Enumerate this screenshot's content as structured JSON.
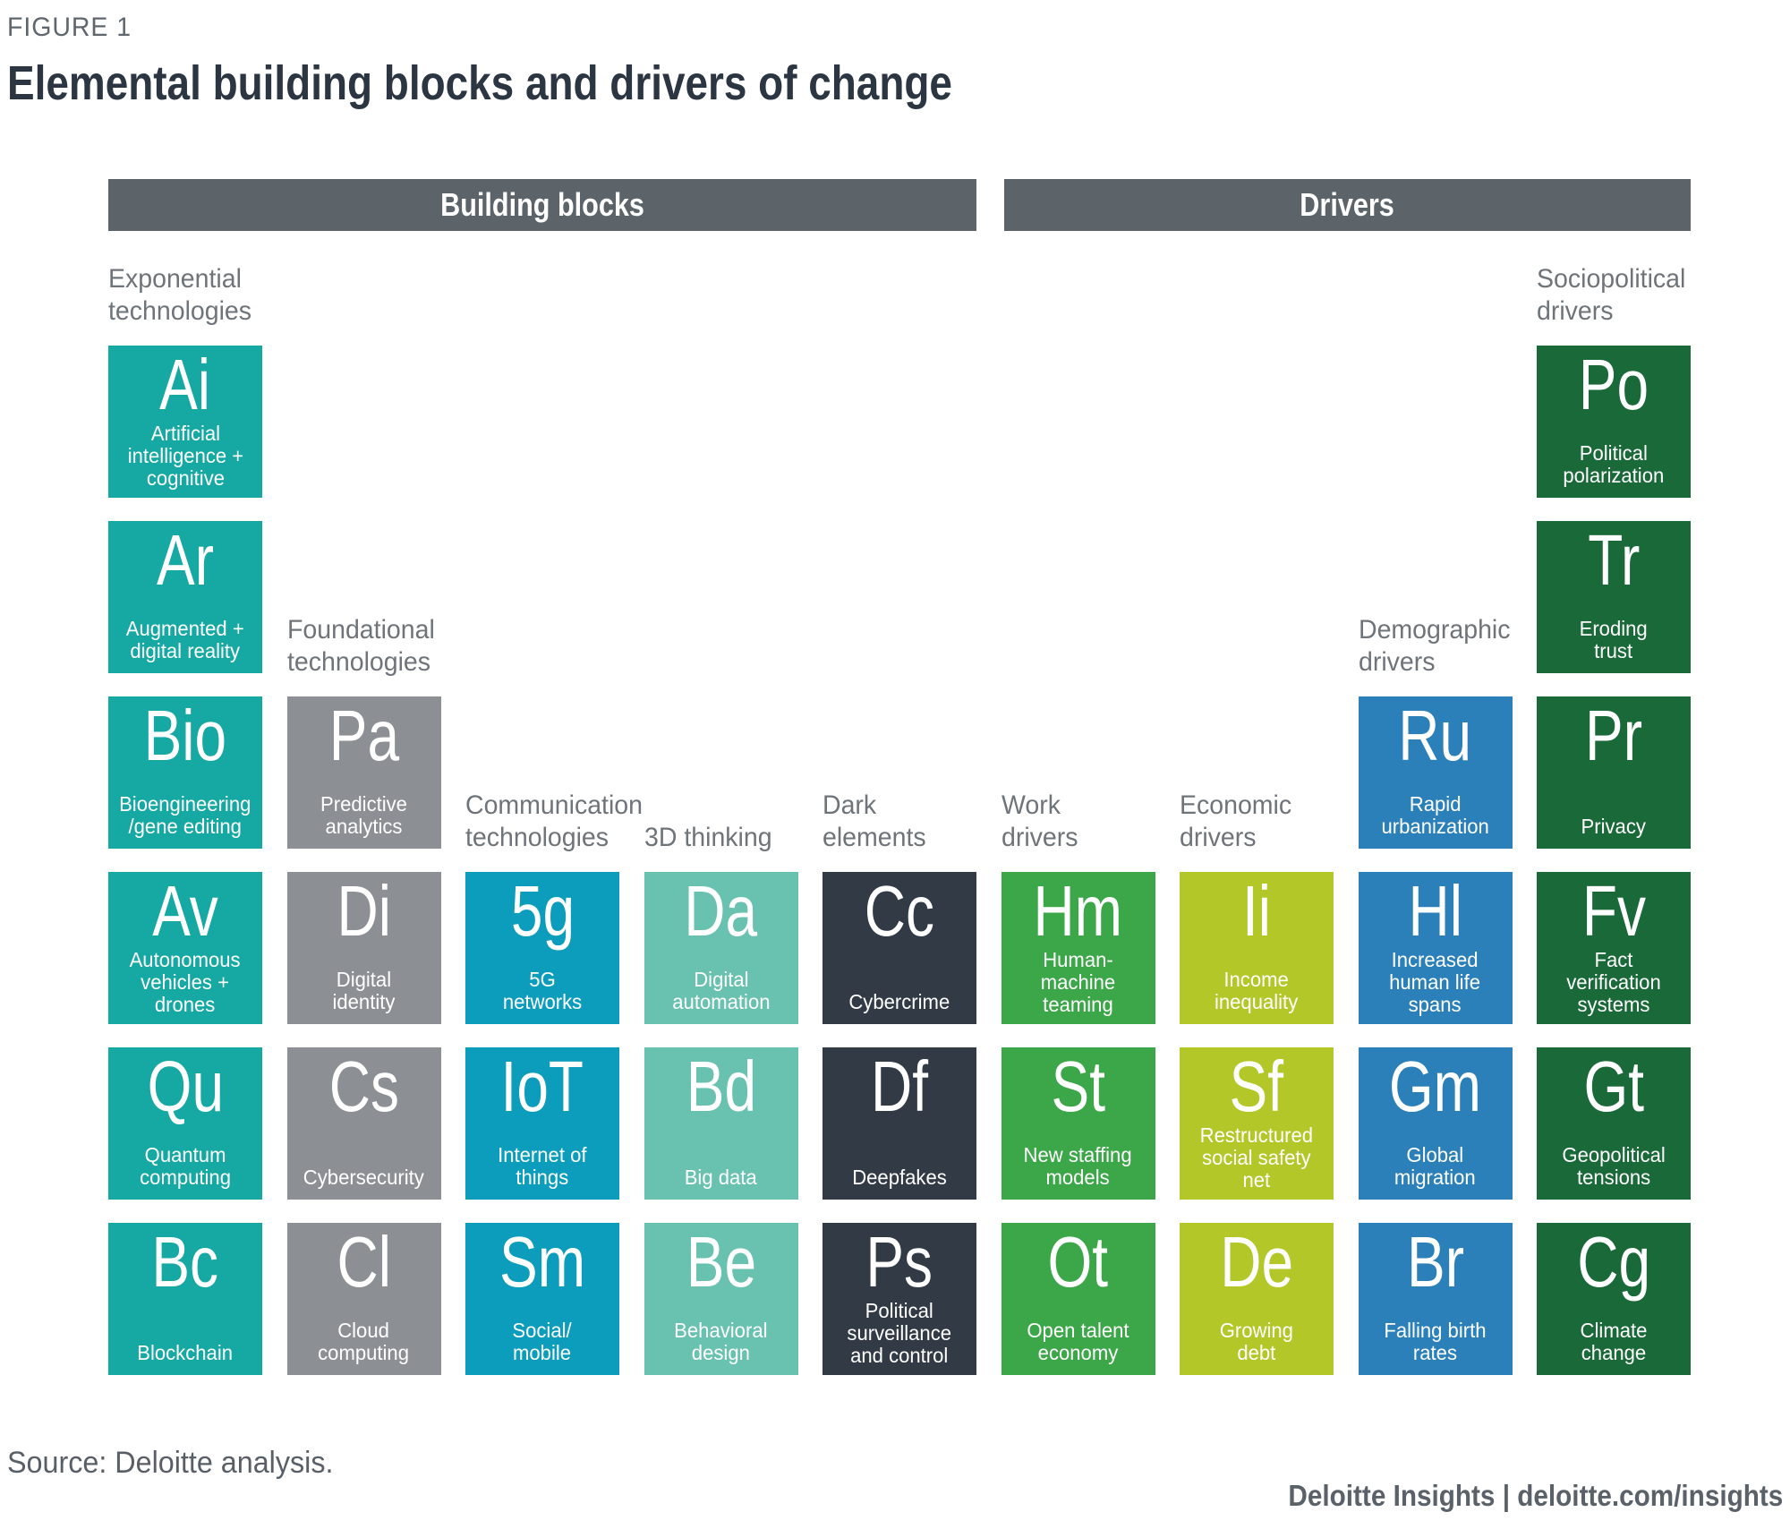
{
  "figure_label": "FIGURE 1",
  "title": "Elemental building blocks and drivers of change",
  "group_headers": [
    {
      "label": "Building blocks"
    },
    {
      "label": "Drivers"
    }
  ],
  "columns": [
    {
      "id": "exponential-technologies",
      "label": "Exponential\ntechnologies",
      "color": "#16A8A3",
      "col": 1,
      "label_row": 1,
      "tiles": [
        {
          "symbol": "Ai",
          "label": "Artificial\nintelligence +\ncognitive",
          "row": 1
        },
        {
          "symbol": "Ar",
          "label": "Augmented +\ndigital reality",
          "row": 2
        },
        {
          "symbol": "Bio",
          "label": "Bioengineering\n/gene editing",
          "row": 3
        },
        {
          "symbol": "Av",
          "label": "Autonomous\nvehicles +\ndrones",
          "row": 4
        },
        {
          "symbol": "Qu",
          "label": "Quantum\ncomputing",
          "row": 5
        },
        {
          "symbol": "Bc",
          "label": "Blockchain",
          "row": 6
        }
      ]
    },
    {
      "id": "foundational-technologies",
      "label": "Foundational\ntechnologies",
      "color": "#8C9094",
      "col": 2,
      "label_row": 3,
      "tiles": [
        {
          "symbol": "Pa",
          "label": "Predictive\nanalytics",
          "row": 3
        },
        {
          "symbol": "Di",
          "label": "Digital\nidentity",
          "row": 4
        },
        {
          "symbol": "Cs",
          "label": "Cybersecurity",
          "row": 5
        },
        {
          "symbol": "Cl",
          "label": "Cloud\ncomputing",
          "row": 6
        }
      ]
    },
    {
      "id": "communication-technologies",
      "label": "Communication\ntechnologies",
      "color": "#0C9DBC",
      "col": 3,
      "label_row": 4,
      "tiles": [
        {
          "symbol": "5g",
          "label": "5G\nnetworks",
          "row": 4
        },
        {
          "symbol": "IoT",
          "label": "Internet of\nthings",
          "row": 5
        },
        {
          "symbol": "Sm",
          "label": "Social/\nmobile",
          "row": 6
        }
      ]
    },
    {
      "id": "3d-thinking",
      "label": "3D thinking",
      "color": "#69C2B0",
      "col": 4,
      "label_row": 4,
      "tiles": [
        {
          "symbol": "Da",
          "label": "Digital\nautomation",
          "row": 4
        },
        {
          "symbol": "Bd",
          "label": "Big data",
          "row": 5
        },
        {
          "symbol": "Be",
          "label": "Behavioral\ndesign",
          "row": 6
        }
      ]
    },
    {
      "id": "dark-elements",
      "label": "Dark\nelements",
      "color": "#323A46",
      "col": 5,
      "label_row": 4,
      "tiles": [
        {
          "symbol": "Cc",
          "label": "Cybercrime",
          "row": 4
        },
        {
          "symbol": "Df",
          "label": "Deepfakes",
          "row": 5
        },
        {
          "symbol": "Ps",
          "label": "Political\nsurveillance\nand control",
          "row": 6
        }
      ]
    },
    {
      "id": "work-drivers",
      "label": "Work\ndrivers",
      "color": "#3CA748",
      "col": 6,
      "label_row": 4,
      "tiles": [
        {
          "symbol": "Hm",
          "label": "Human-\nmachine\nteaming",
          "row": 4
        },
        {
          "symbol": "St",
          "label": "New staffing\nmodels",
          "row": 5
        },
        {
          "symbol": "Ot",
          "label": "Open talent\neconomy",
          "row": 6
        }
      ]
    },
    {
      "id": "economic-drivers",
      "label": "Economic\ndrivers",
      "color": "#B3C728",
      "col": 7,
      "label_row": 4,
      "tiles": [
        {
          "symbol": "Ii",
          "label": "Income\ninequality",
          "row": 4
        },
        {
          "symbol": "Sf",
          "label": "Restructured\nsocial safety\nnet",
          "row": 5
        },
        {
          "symbol": "De",
          "label": "Growing\ndebt",
          "row": 6
        }
      ]
    },
    {
      "id": "demographic-drivers",
      "label": "Demographic\ndrivers",
      "color": "#2B80B9",
      "col": 8,
      "label_row": 3,
      "tiles": [
        {
          "symbol": "Ru",
          "label": "Rapid\nurbanization",
          "row": 3
        },
        {
          "symbol": "Hl",
          "label": "Increased\nhuman life\nspans",
          "row": 4
        },
        {
          "symbol": "Gm",
          "label": "Global\nmigration",
          "row": 5
        },
        {
          "symbol": "Br",
          "label": "Falling birth\nrates",
          "row": 6
        }
      ]
    },
    {
      "id": "sociopolitical-drivers",
      "label": "Sociopolitical\ndrivers",
      "color": "#1A6938",
      "col": 9,
      "label_row": 1,
      "tiles": [
        {
          "symbol": "Po",
          "label": "Political\npolarization",
          "row": 1
        },
        {
          "symbol": "Tr",
          "label": "Eroding\ntrust",
          "row": 2
        },
        {
          "symbol": "Pr",
          "label": "Privacy",
          "row": 3
        },
        {
          "symbol": "Fv",
          "label": "Fact\nverification\nsystems",
          "row": 4
        },
        {
          "symbol": "Gt",
          "label": "Geopolitical\ntensions",
          "row": 5
        },
        {
          "symbol": "Cg",
          "label": "Climate\nchange",
          "row": 6
        }
      ]
    }
  ],
  "source": "Source: Deloitte analysis.",
  "footer": "Deloitte Insights | deloitte.com/insights",
  "colors": {
    "header_bar": "#5C6369",
    "title_text": "#2C3542",
    "figure_label_text": "#5F666D",
    "column_label_text": "#6E7479",
    "tile_text": "#FFFFFF",
    "source_text": "#595F66",
    "footer_text": "#5A6168"
  }
}
